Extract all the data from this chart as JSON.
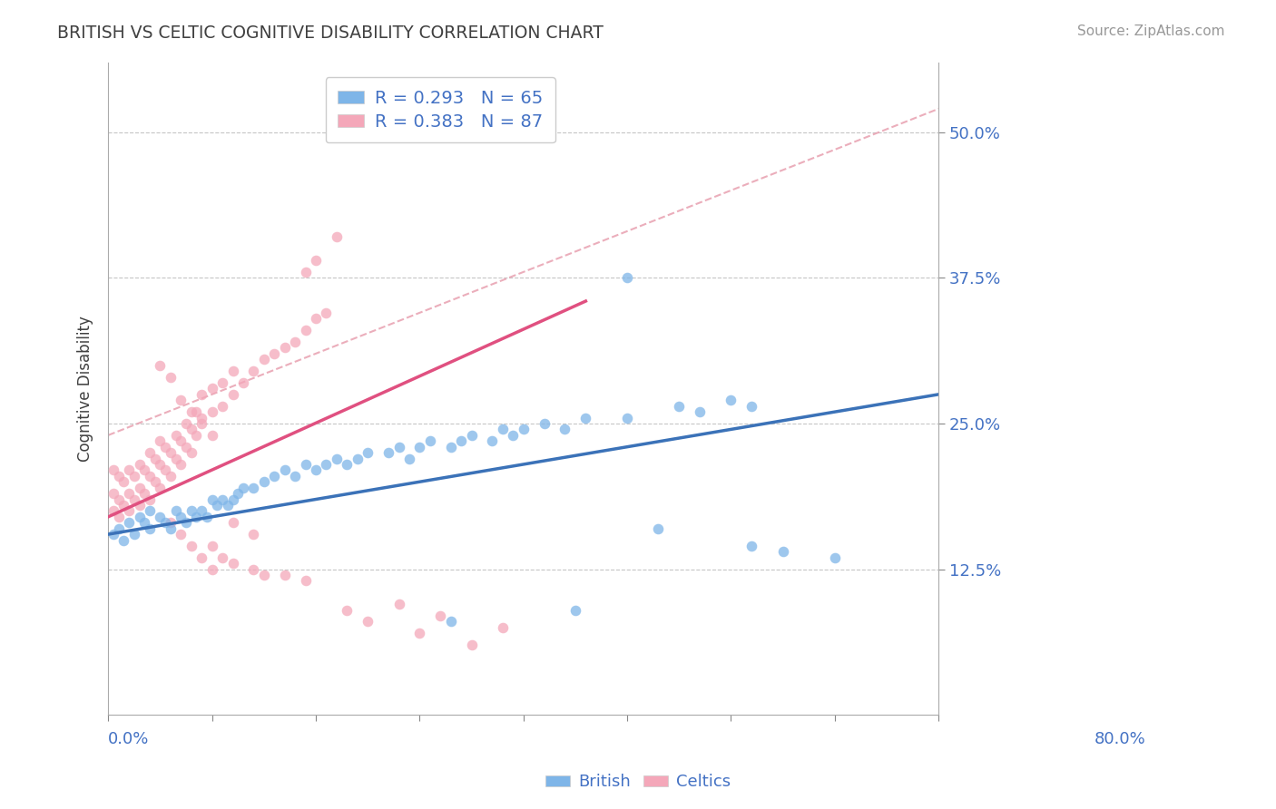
{
  "title": "BRITISH VS CELTIC COGNITIVE DISABILITY CORRELATION CHART",
  "source": "Source: ZipAtlas.com",
  "ylabel": "Cognitive Disability",
  "ytick_vals": [
    0.125,
    0.25,
    0.375,
    0.5
  ],
  "ytick_labels": [
    "12.5%",
    "25.0%",
    "37.5%",
    "50.0%"
  ],
  "xlim": [
    0.0,
    0.8
  ],
  "ylim": [
    0.0,
    0.56
  ],
  "british_R": 0.293,
  "british_N": 65,
  "celtic_R": 0.383,
  "celtic_N": 87,
  "british_color": "#7EB5E8",
  "celtic_color": "#F4A7B9",
  "british_line_color": "#3B72B8",
  "celtic_line_color": "#E05080",
  "dashed_line_color": "#E8A0B0",
  "title_color": "#404040",
  "axis_label_color": "#4472C4",
  "grid_color": "#C0C0C0",
  "background_color": "#FFFFFF",
  "british_line_x0": 0.0,
  "british_line_y0": 0.155,
  "british_line_x1": 0.8,
  "british_line_y1": 0.275,
  "celtic_line_x0": 0.0,
  "celtic_line_y0": 0.17,
  "celtic_line_x1": 0.46,
  "celtic_line_y1": 0.355,
  "dashed_line_x0": 0.0,
  "dashed_line_y0": 0.24,
  "dashed_line_x1": 0.8,
  "dashed_line_y1": 0.52,
  "british_x": [
    0.005,
    0.01,
    0.015,
    0.02,
    0.025,
    0.03,
    0.035,
    0.04,
    0.04,
    0.05,
    0.055,
    0.06,
    0.065,
    0.07,
    0.075,
    0.08,
    0.085,
    0.09,
    0.095,
    0.1,
    0.105,
    0.11,
    0.115,
    0.12,
    0.125,
    0.13,
    0.14,
    0.15,
    0.16,
    0.17,
    0.18,
    0.19,
    0.2,
    0.21,
    0.22,
    0.23,
    0.24,
    0.25,
    0.27,
    0.28,
    0.29,
    0.3,
    0.31,
    0.33,
    0.34,
    0.35,
    0.37,
    0.38,
    0.39,
    0.4,
    0.42,
    0.44,
    0.46,
    0.5,
    0.53,
    0.55,
    0.57,
    0.6,
    0.62,
    0.65,
    0.7,
    0.5,
    0.62,
    0.33,
    0.45
  ],
  "british_y": [
    0.155,
    0.16,
    0.15,
    0.165,
    0.155,
    0.17,
    0.165,
    0.16,
    0.175,
    0.17,
    0.165,
    0.16,
    0.175,
    0.17,
    0.165,
    0.175,
    0.17,
    0.175,
    0.17,
    0.185,
    0.18,
    0.185,
    0.18,
    0.185,
    0.19,
    0.195,
    0.195,
    0.2,
    0.205,
    0.21,
    0.205,
    0.215,
    0.21,
    0.215,
    0.22,
    0.215,
    0.22,
    0.225,
    0.225,
    0.23,
    0.22,
    0.23,
    0.235,
    0.23,
    0.235,
    0.24,
    0.235,
    0.245,
    0.24,
    0.245,
    0.25,
    0.245,
    0.255,
    0.255,
    0.16,
    0.265,
    0.26,
    0.27,
    0.265,
    0.14,
    0.135,
    0.375,
    0.145,
    0.08,
    0.09
  ],
  "celtic_x": [
    0.005,
    0.005,
    0.005,
    0.01,
    0.01,
    0.01,
    0.015,
    0.015,
    0.02,
    0.02,
    0.02,
    0.025,
    0.025,
    0.03,
    0.03,
    0.03,
    0.035,
    0.035,
    0.04,
    0.04,
    0.04,
    0.045,
    0.045,
    0.05,
    0.05,
    0.05,
    0.055,
    0.055,
    0.06,
    0.06,
    0.065,
    0.065,
    0.07,
    0.07,
    0.075,
    0.075,
    0.08,
    0.08,
    0.085,
    0.085,
    0.09,
    0.09,
    0.1,
    0.1,
    0.11,
    0.11,
    0.12,
    0.12,
    0.13,
    0.14,
    0.15,
    0.16,
    0.17,
    0.18,
    0.19,
    0.2,
    0.05,
    0.06,
    0.07,
    0.08,
    0.09,
    0.1,
    0.06,
    0.07,
    0.08,
    0.09,
    0.1,
    0.1,
    0.11,
    0.12,
    0.14,
    0.15,
    0.17,
    0.19,
    0.21,
    0.23,
    0.25,
    0.3,
    0.35,
    0.12,
    0.14,
    0.28,
    0.32,
    0.38,
    0.19,
    0.2,
    0.22
  ],
  "celtic_y": [
    0.175,
    0.19,
    0.21,
    0.17,
    0.185,
    0.205,
    0.18,
    0.2,
    0.175,
    0.19,
    0.21,
    0.185,
    0.205,
    0.18,
    0.195,
    0.215,
    0.19,
    0.21,
    0.185,
    0.205,
    0.225,
    0.2,
    0.22,
    0.195,
    0.215,
    0.235,
    0.21,
    0.23,
    0.205,
    0.225,
    0.22,
    0.24,
    0.215,
    0.235,
    0.23,
    0.25,
    0.225,
    0.245,
    0.24,
    0.26,
    0.255,
    0.275,
    0.26,
    0.28,
    0.265,
    0.285,
    0.275,
    0.295,
    0.285,
    0.295,
    0.305,
    0.31,
    0.315,
    0.32,
    0.33,
    0.34,
    0.3,
    0.29,
    0.27,
    0.26,
    0.25,
    0.24,
    0.165,
    0.155,
    0.145,
    0.135,
    0.125,
    0.145,
    0.135,
    0.13,
    0.125,
    0.12,
    0.12,
    0.115,
    0.345,
    0.09,
    0.08,
    0.07,
    0.06,
    0.165,
    0.155,
    0.095,
    0.085,
    0.075,
    0.38,
    0.39,
    0.41
  ]
}
